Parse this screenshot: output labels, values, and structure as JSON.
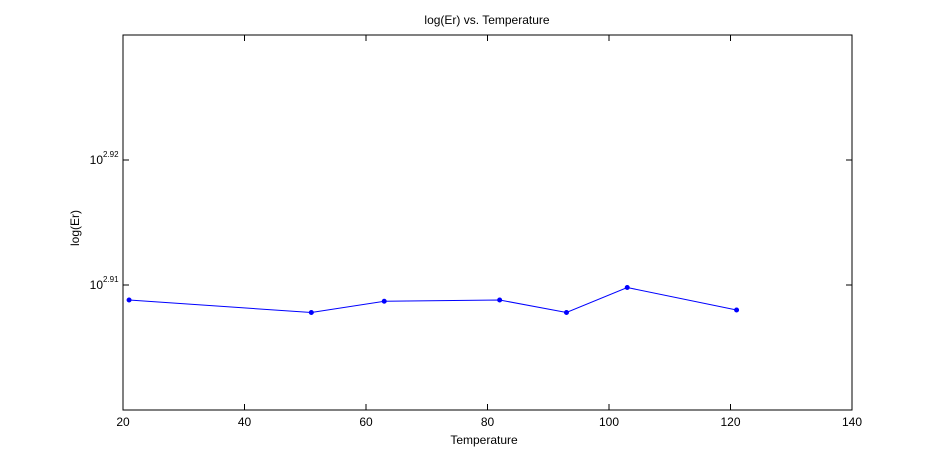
{
  "chart_data": {
    "type": "line",
    "title": "log(Er) vs. Temperature",
    "xlabel": "Temperature",
    "ylabel": "log(Er)",
    "x": [
      21,
      51,
      63,
      82,
      93,
      103,
      121
    ],
    "series": [
      {
        "values": [
          2.9088,
          2.9078,
          2.9087,
          2.9088,
          2.9078,
          2.9098,
          2.908
        ],
        "color": "#0000ff",
        "marker": "dot"
      }
    ],
    "xlim": [
      20,
      140
    ],
    "ylim": [
      2.9,
      2.93
    ],
    "yscale": "log10 exponent",
    "x_ticks": [
      {
        "value": 20,
        "label": "20"
      },
      {
        "value": 40,
        "label": "40"
      },
      {
        "value": 60,
        "label": "60"
      },
      {
        "value": 80,
        "label": "80"
      },
      {
        "value": 100,
        "label": "100"
      },
      {
        "value": 120,
        "label": "120"
      },
      {
        "value": 140,
        "label": "140"
      }
    ],
    "y_ticks": [
      {
        "value": 2.91,
        "base": "10",
        "exponent": "2.91"
      },
      {
        "value": 2.92,
        "base": "10",
        "exponent": "2.92"
      }
    ],
    "grid": false,
    "legend": "none"
  }
}
